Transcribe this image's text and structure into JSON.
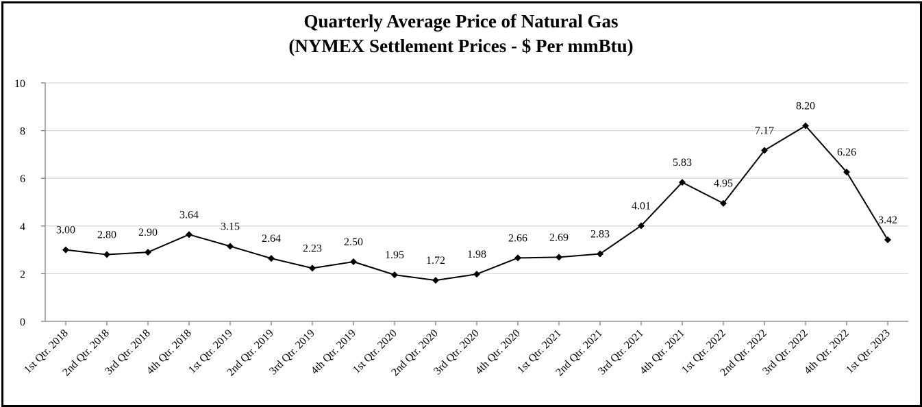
{
  "chart_data": {
    "type": "line",
    "title_line1": "Quarterly Average Price of Natural Gas",
    "title_line2": "(NYMEX Settlement Prices - $ Per mmBtu)",
    "xlabel": "",
    "ylabel": "",
    "ylim": [
      0,
      10
    ],
    "yticks": [
      "0",
      "2",
      "4",
      "6",
      "8",
      "10"
    ],
    "grid": true,
    "categories": [
      "1st Qtr. 2018",
      "2nd Qtr. 2018",
      "3rd Qtr. 2018",
      "4th Qtr. 2018",
      "1st Qtr. 2019",
      "2nd Qtr. 2019",
      "3rd Qtr. 2019",
      "4th Qtr. 2019",
      "1st Qtr. 2020",
      "2nd Qtr. 2020",
      "3rd Qtr. 2020",
      "4th Qtr. 2020",
      "1st Qtr. 2021",
      "2nd Qtr. 2021",
      "3rd Qtr. 2021",
      "4th Qtr. 2021",
      "1st Qtr. 2022",
      "2nd Qtr. 2022",
      "3rd Qtr. 2022",
      "4th Qtr. 2022",
      "1st Qtr. 2023"
    ],
    "values": [
      3.0,
      2.8,
      2.9,
      3.64,
      3.15,
      2.64,
      2.23,
      2.5,
      1.95,
      1.72,
      1.98,
      2.66,
      2.69,
      2.83,
      4.01,
      5.83,
      4.95,
      7.17,
      8.2,
      6.26,
      3.42
    ],
    "data_labels": [
      "3.00",
      "2.80",
      "2.90",
      "3.64",
      "3.15",
      "2.64",
      "2.23",
      "2.50",
      "1.95",
      "1.72",
      "1.98",
      "2.66",
      "2.69",
      "2.83",
      "4.01",
      "5.83",
      "4.95",
      "7.17",
      "8.20",
      "6.26",
      "3.42"
    ],
    "colors": {
      "line": "#000000",
      "marker": "#000000",
      "grid": "#d9d9d9",
      "axis": "#808080",
      "frame": "#000000"
    }
  }
}
